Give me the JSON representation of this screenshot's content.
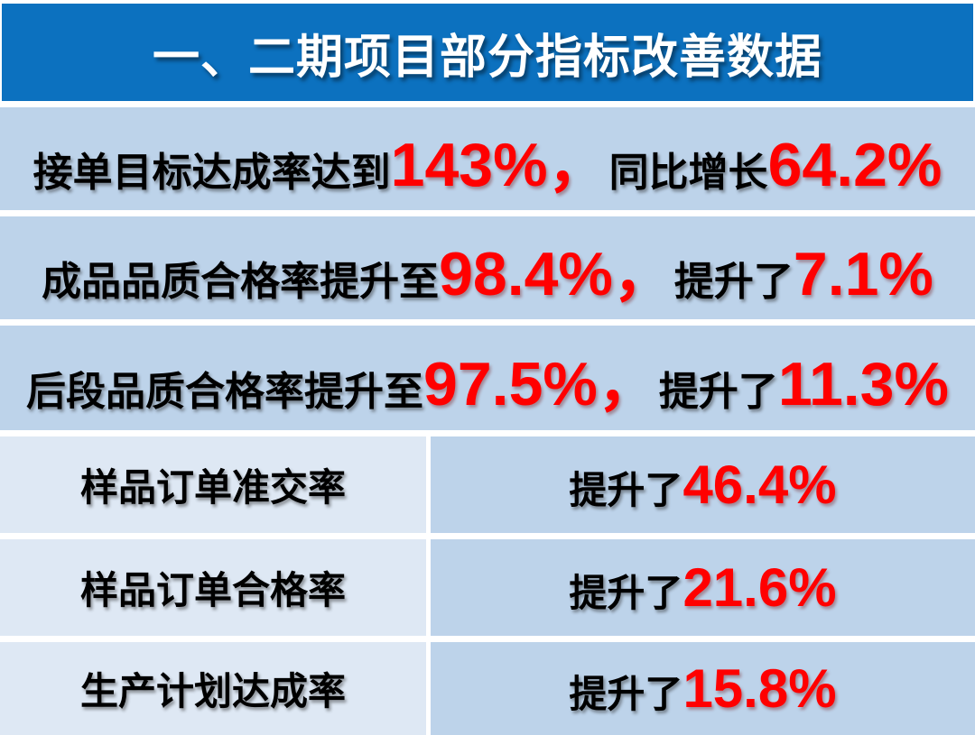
{
  "title_bar": {
    "title": "一、二期项目部分指标改善数据"
  },
  "colors": {
    "header_blue": "#0C71BF",
    "row_blue": "#BDD3EA",
    "cell_light_blue": "#DEE8F4",
    "highlight_red": "#FF0000",
    "text_black": "#000000",
    "title_white": "#FFFFFF",
    "page_background": "#FFFFFF"
  },
  "stat_rows": [
    {
      "prefix": "接单目标达成率达到",
      "value1": "143%",
      "separator": "，",
      "middle": "同比增长",
      "value2": "64.2%"
    },
    {
      "prefix": "成品品质合格率提升至",
      "value1": "98.4%",
      "separator": "，",
      "middle": "提升了",
      "value2": "7.1%"
    },
    {
      "prefix": "后段品质合格率提升至",
      "value1": "97.5%",
      "separator": "，",
      "middle": "提升了",
      "value2": "11.3%"
    }
  ],
  "metrics_table": {
    "rows": [
      {
        "label": "样品订单准交率",
        "change_prefix": "提升了",
        "change_value": "46.4%"
      },
      {
        "label": "样品订单合格率",
        "change_prefix": "提升了",
        "change_value": "21.6%"
      },
      {
        "label": "生产计划达成率",
        "change_prefix": "提升了",
        "change_value": "15.8%"
      }
    ]
  }
}
